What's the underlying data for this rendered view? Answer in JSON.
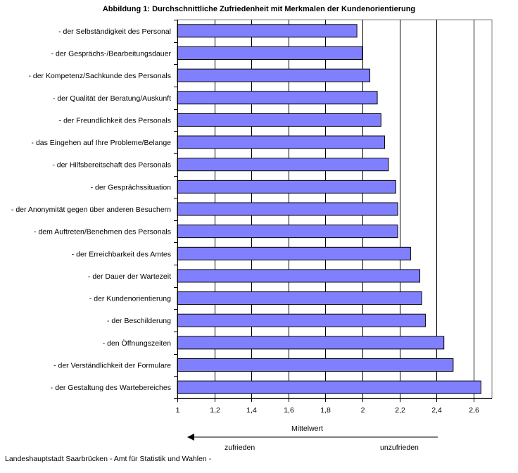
{
  "chart_data": {
    "type": "bar",
    "orientation": "horizontal",
    "title": "Abbildung 1: Durchschnittliche Zufriedenheit mit Merkmalen der Kundenorientierung",
    "categories": [
      "- der Selbständigkeit des Personal",
      "- der Gesprächs-/Bearbeitungsdauer",
      "- der Kompetenz/Sachkunde des Personals",
      "- der Qualität der Beratung/Auskunft",
      "- der Freundlichkeit des Personals",
      "- das Eingehen auf Ihre Probleme/Belange",
      "- der Hilfsbereitschaft des Personals",
      "- der Gesprächssituation",
      "- der Anonymität gegen über anderen Besuchern",
      "- dem Auftreten/Benehmen des Personals",
      "- der Erreichbarkeit des Amtes",
      "- der Dauer der Wartezeit",
      "- der Kundenorientierung",
      "- der Beschilderung",
      "- den Öffnungszeiten",
      "- der Verständlichkeit der Formulare",
      "- der Gestaltung des Wartebereiches"
    ],
    "values": [
      1.97,
      2.0,
      2.04,
      2.08,
      2.1,
      2.12,
      2.14,
      2.18,
      2.19,
      2.19,
      2.26,
      2.31,
      2.32,
      2.34,
      2.44,
      2.49,
      2.64
    ],
    "xlim": [
      1,
      2.7
    ],
    "xticks": [
      1,
      1.2,
      1.4,
      1.6,
      1.8,
      2,
      2.2,
      2.4,
      2.6
    ],
    "xtick_labels": [
      "1",
      "1,2",
      "1,4",
      "1,6",
      "1,8",
      "2",
      "2,2",
      "2,4",
      "2,6"
    ],
    "xlabel": "Mittelwert",
    "grid": "vertical",
    "bar_color": "#8080FF",
    "arrow_left_label": "zufrieden",
    "arrow_right_label": "unzufrieden"
  },
  "footer": "Landeshauptstadt Saarbrücken - Amt für Statistik und Wahlen -"
}
